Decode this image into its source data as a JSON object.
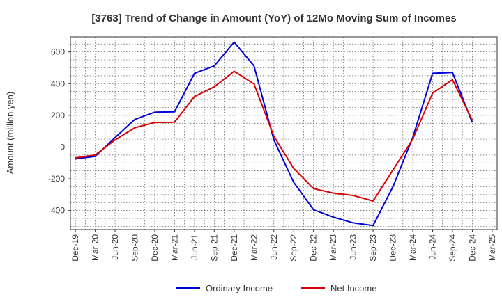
{
  "chart_data": {
    "type": "line",
    "title": "[3763]  Trend of Change in Amount (YoY) of 12Mo Moving Sum of Incomes",
    "xlabel": "",
    "ylabel": "Amount (million yen)",
    "ylim": [
      -520,
      695
    ],
    "yticks": [
      -400,
      -200,
      0,
      200,
      400,
      600
    ],
    "categories": [
      "Dec-19",
      "Mar-20",
      "Jun-20",
      "Sep-20",
      "Dec-20",
      "Mar-21",
      "Jun-21",
      "Sep-21",
      "Dec-21",
      "Mar-22",
      "Jun-22",
      "Sep-22",
      "Dec-22",
      "Mar-23",
      "Jun-23",
      "Sep-23",
      "Dec-23",
      "Mar-24",
      "Jun-24",
      "Sep-24",
      "Dec-24",
      "Mar-25"
    ],
    "series": [
      {
        "name": "Ordinary Income",
        "color": "#0000dd",
        "values": [
          -75,
          -58,
          60,
          175,
          220,
          222,
          465,
          512,
          662,
          512,
          45,
          -222,
          -395,
          -442,
          -478,
          -495,
          -250,
          60,
          465,
          470,
          155,
          null
        ]
      },
      {
        "name": "Net Income",
        "color": "#dd0000",
        "values": [
          -68,
          -50,
          45,
          122,
          155,
          157,
          318,
          380,
          478,
          398,
          68,
          -135,
          -262,
          -290,
          -305,
          -340,
          -145,
          50,
          340,
          425,
          170,
          null
        ]
      }
    ],
    "grid": true,
    "legend": "bottom"
  }
}
